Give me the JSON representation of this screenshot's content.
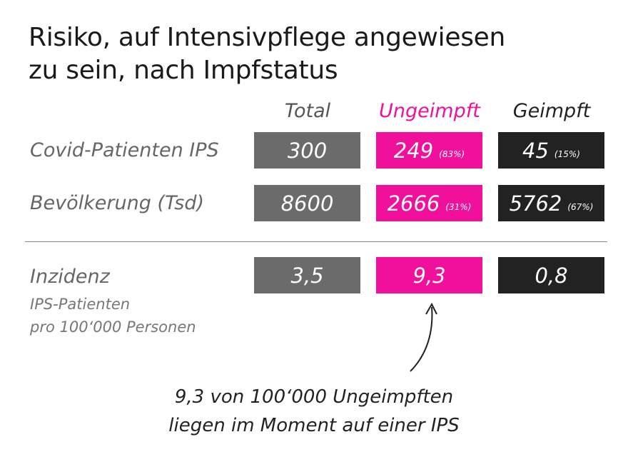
{
  "title": {
    "line1": "Risiko, auf Intensivpflege angewiesen",
    "line2": "zu sein, nach Impfstatus"
  },
  "columns": [
    {
      "label": "Total",
      "color": "#6b6b6b",
      "text_color": "#555555"
    },
    {
      "label": "Ungeimpft",
      "color": "#f0109b",
      "text_color": "#f0109b"
    },
    {
      "label": "Geimpft",
      "color": "#222222",
      "text_color": "#222222"
    }
  ],
  "rows": [
    {
      "label": "Covid-Patienten IPS",
      "values": [
        {
          "value": "300",
          "pct": ""
        },
        {
          "value": "249",
          "pct": "(83%)"
        },
        {
          "value": "45",
          "pct": "(15%)"
        }
      ]
    },
    {
      "label": "Bevölkerung (Tsd)",
      "values": [
        {
          "value": "8600",
          "pct": ""
        },
        {
          "value": "2666",
          "pct": "(31%)"
        },
        {
          "value": "5762",
          "pct": "(67%)"
        }
      ]
    },
    {
      "label": "Inzidenz",
      "sublabel1": "IPS-Patienten",
      "sublabel2": "pro 100‘000 Personen",
      "values": [
        {
          "value": "3,5",
          "pct": ""
        },
        {
          "value": "9,3",
          "pct": ""
        },
        {
          "value": "0,8",
          "pct": ""
        }
      ]
    }
  ],
  "annotation": {
    "line1": "9,3 von 100‘000 Ungeimpften",
    "line2": "liegen im Moment auf einer IPS"
  }
}
